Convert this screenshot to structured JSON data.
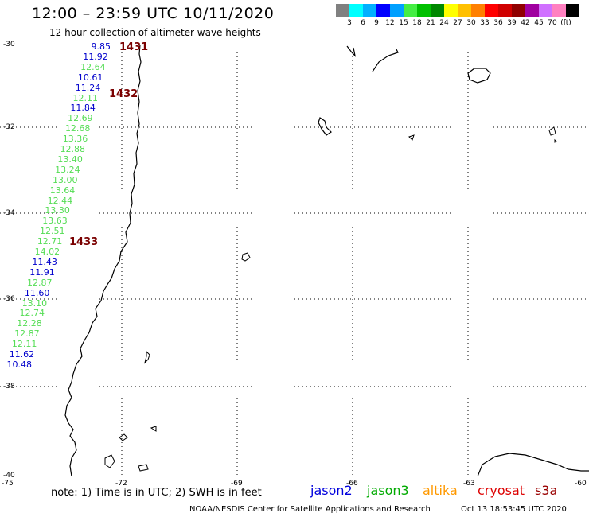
{
  "header": {
    "title": "12:00 – 23:59 UTC 10/11/2020",
    "subtitle": "12 hour collection of altimeter wave heights"
  },
  "scale": {
    "colors": [
      "#808080",
      "#00ffff",
      "#00b0ff",
      "#0000ff",
      "#00a0ff",
      "#44ee44",
      "#00c000",
      "#008800",
      "#ffff00",
      "#ffc000",
      "#ff8000",
      "#ff0000",
      "#d00000",
      "#900000",
      "#a000a0",
      "#d070ff",
      "#ff80c0",
      "#000000"
    ],
    "labels": [
      "3",
      "6",
      "9",
      "12",
      "15",
      "18",
      "21",
      "24",
      "27",
      "30",
      "33",
      "36",
      "39",
      "42",
      "45",
      "70",
      "(ft)"
    ]
  },
  "axes": {
    "lat_labels": [
      "-30",
      "-32",
      "-34",
      "-36",
      "-38",
      "-40"
    ],
    "lon_labels": [
      "-75",
      "-72",
      "-69",
      "-66",
      "-63",
      "-60"
    ]
  },
  "orbits": [
    "1431",
    "1432",
    "1433"
  ],
  "wave_heights": [
    {
      "v": "9.85",
      "c": "#0000cc"
    },
    {
      "v": "11.92",
      "c": "#0000cc"
    },
    {
      "v": "12.64",
      "c": "#55dd55"
    },
    {
      "v": "10.61",
      "c": "#0000cc"
    },
    {
      "v": "11.24",
      "c": "#0000cc"
    },
    {
      "v": "12.11",
      "c": "#55dd55"
    },
    {
      "v": "11.84",
      "c": "#0000cc"
    },
    {
      "v": "12.69",
      "c": "#55dd55"
    },
    {
      "v": "12.68",
      "c": "#55dd55"
    },
    {
      "v": "13.36",
      "c": "#55dd55"
    },
    {
      "v": "12.88",
      "c": "#55dd55"
    },
    {
      "v": "13.40",
      "c": "#55dd55"
    },
    {
      "v": "13.24",
      "c": "#55dd55"
    },
    {
      "v": "13.00",
      "c": "#55dd55"
    },
    {
      "v": "13.64",
      "c": "#55dd55"
    },
    {
      "v": "12.44",
      "c": "#55dd55"
    },
    {
      "v": "13.30",
      "c": "#55dd55"
    },
    {
      "v": "13.63",
      "c": "#55dd55"
    },
    {
      "v": "12.51",
      "c": "#55dd55"
    },
    {
      "v": "12.71",
      "c": "#55dd55"
    },
    {
      "v": "14.02",
      "c": "#55dd55"
    },
    {
      "v": "11.43",
      "c": "#0000cc"
    },
    {
      "v": "11.91",
      "c": "#0000cc"
    },
    {
      "v": "12.87",
      "c": "#55dd55"
    },
    {
      "v": "11.60",
      "c": "#0000cc"
    },
    {
      "v": "13.10",
      "c": "#55dd55"
    },
    {
      "v": "12.74",
      "c": "#55dd55"
    },
    {
      "v": "12.28",
      "c": "#55dd55"
    },
    {
      "v": "12.87",
      "c": "#55dd55"
    },
    {
      "v": "12.11",
      "c": "#55dd55"
    },
    {
      "v": "11.62",
      "c": "#0000cc"
    },
    {
      "v": "10.48",
      "c": "#0000cc"
    }
  ],
  "legend": {
    "note": "note:  1) Time is in UTC;  2) SWH is in feet",
    "satellites": [
      {
        "name": "jason2",
        "color": "#0000dd"
      },
      {
        "name": "jason3",
        "color": "#00aa00"
      },
      {
        "name": "altika",
        "color": "#ff9900"
      },
      {
        "name": "cryosat",
        "color": "#dd0000"
      },
      {
        "name": "s3a",
        "color": "#990000"
      }
    ]
  },
  "footer": {
    "credit": "NOAA/NESDIS Center for Satellite Applications and Research",
    "timestamp": "Oct 13 18:53:45 UTC 2020"
  }
}
